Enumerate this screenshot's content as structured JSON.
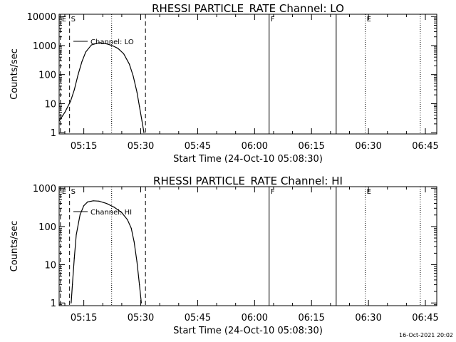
{
  "footer_timestamp": "16-Oct-2021 20:02",
  "chart_data": [
    {
      "type": "line",
      "title": "RHESSI PARTICLE_RATE Channel: LO",
      "xlabel": "Start Time (24-Oct-10 05:08:30)",
      "ylabel": "Counts/sec",
      "yscale": "log",
      "xlim": [
        "05:08:30",
        "06:48:00"
      ],
      "ylim": [
        0.9,
        12000
      ],
      "xticks": [
        "05:15",
        "05:30",
        "05:45",
        "06:00",
        "06:15",
        "06:30",
        "06:45"
      ],
      "yticks": [
        "1",
        "10",
        "100",
        "1000",
        "10000"
      ],
      "legend": "Channel: LO",
      "markers": [
        {
          "label": "E",
          "time": "05:08:50",
          "style": "dashed"
        },
        {
          "label": "S",
          "time": "05:11:15",
          "style": "dashed"
        },
        {
          "label": "",
          "time": "05:22:20",
          "style": "dotted"
        },
        {
          "label": "",
          "time": "05:31:15",
          "style": "dashed"
        },
        {
          "label": "F",
          "time": "06:03:50",
          "style": "solid"
        },
        {
          "label": "",
          "time": "06:21:30",
          "style": "solid"
        },
        {
          "label": "E",
          "time": "06:29:10",
          "style": "dotted"
        },
        {
          "label": "",
          "time": "06:43:40",
          "style": "dotted"
        }
      ],
      "series": [
        {
          "name": "Channel: LO",
          "x": [
            "05:08:30",
            "05:10:00",
            "05:11:30",
            "05:12:30",
            "05:13:30",
            "05:14:30",
            "05:15:30",
            "05:17:00",
            "05:19:00",
            "05:21:00",
            "05:22:30",
            "05:24:00",
            "05:25:30",
            "05:27:00",
            "05:28:00",
            "05:29:00",
            "05:29:40",
            "05:30:20",
            "05:30:50"
          ],
          "y": [
            2.5,
            5,
            12,
            30,
            100,
            280,
            600,
            1050,
            1250,
            1150,
            1000,
            800,
            520,
            230,
            90,
            25,
            8,
            2.5,
            1
          ]
        }
      ]
    },
    {
      "type": "line",
      "title": "RHESSI PARTICLE_RATE Channel: HI",
      "xlabel": "Start Time (24-Oct-10 05:08:30)",
      "ylabel": "Counts/sec",
      "yscale": "log",
      "xlim": [
        "05:08:30",
        "06:48:00"
      ],
      "ylim": [
        0.85,
        1100
      ],
      "xticks": [
        "05:15",
        "05:30",
        "05:45",
        "06:00",
        "06:15",
        "06:30",
        "06:45"
      ],
      "yticks": [
        "1",
        "10",
        "100",
        "1000"
      ],
      "legend": "Channel: HI",
      "markers": [
        {
          "label": "E",
          "time": "05:08:50",
          "style": "dashed"
        },
        {
          "label": "S",
          "time": "05:11:15",
          "style": "dashed"
        },
        {
          "label": "",
          "time": "05:22:20",
          "style": "dotted"
        },
        {
          "label": "",
          "time": "05:31:15",
          "style": "dashed"
        },
        {
          "label": "F",
          "time": "06:03:50",
          "style": "solid"
        },
        {
          "label": "",
          "time": "06:21:30",
          "style": "solid"
        },
        {
          "label": "E",
          "time": "06:29:10",
          "style": "dotted"
        },
        {
          "label": "",
          "time": "06:43:40",
          "style": "dotted"
        }
      ],
      "series": [
        {
          "name": "Channel: HI",
          "x": [
            "05:11:40",
            "05:12:00",
            "05:12:30",
            "05:13:00",
            "05:14:00",
            "05:15:00",
            "05:16:00",
            "05:17:30",
            "05:19:00",
            "05:21:00",
            "05:23:00",
            "05:25:00",
            "05:26:30",
            "05:27:30",
            "05:28:15",
            "05:29:00",
            "05:29:40",
            "05:30:10"
          ],
          "y": [
            1,
            3,
            15,
            60,
            200,
            350,
            440,
            470,
            460,
            400,
            320,
            230,
            150,
            90,
            40,
            12,
            3,
            1
          ]
        }
      ]
    }
  ]
}
